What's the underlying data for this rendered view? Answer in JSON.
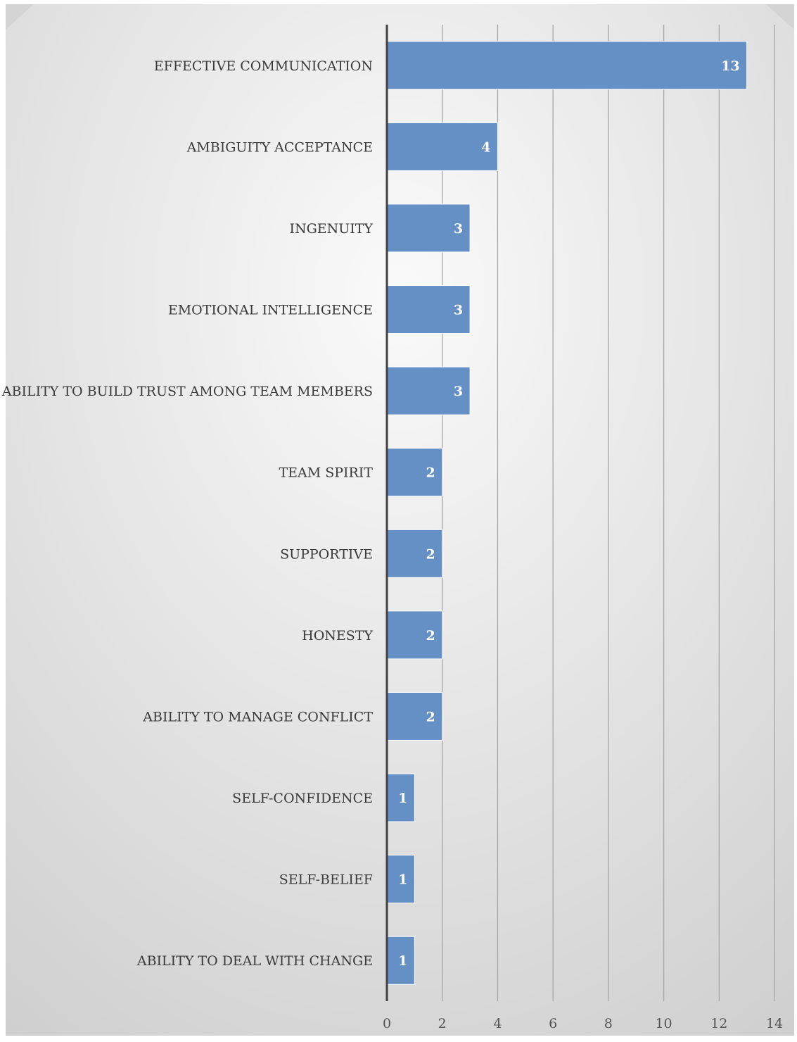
{
  "chart_data": {
    "type": "bar",
    "orientation": "horizontal",
    "categories": [
      "EFFECTIVE COMMUNICATION",
      "AMBIGUITY ACCEPTANCE",
      "INGENUITY",
      "EMOTIONAL INTELLIGENCE",
      "ABILITY TO BUILD TRUST AMONG TEAM MEMBERS",
      "TEAM SPIRIT",
      "SUPPORTIVE",
      "HONESTY",
      "ABILITY TO MANAGE CONFLICT",
      "SELF-CONFIDENCE",
      "SELF-BELIEF",
      "ABILITY TO DEAL WITH CHANGE"
    ],
    "values": [
      13,
      4,
      3,
      3,
      3,
      2,
      2,
      2,
      2,
      1,
      1,
      1
    ],
    "data_labels": [
      "13",
      "4",
      "3",
      "3",
      "3",
      "2",
      "2",
      "2",
      "2",
      "1",
      "1",
      "1"
    ],
    "x_ticks": [
      "0",
      "2",
      "4",
      "6",
      "8",
      "10",
      "12",
      "14"
    ],
    "xlim": [
      0,
      14
    ],
    "grid": "vertical",
    "legend": "none",
    "colors": {
      "bar": "#6590c6",
      "bar_border": "#ffffff",
      "grid": "#a6a6a6",
      "axis": "#404040",
      "background_light": "#fafafa",
      "background_dark": "#cbcbcb"
    }
  }
}
